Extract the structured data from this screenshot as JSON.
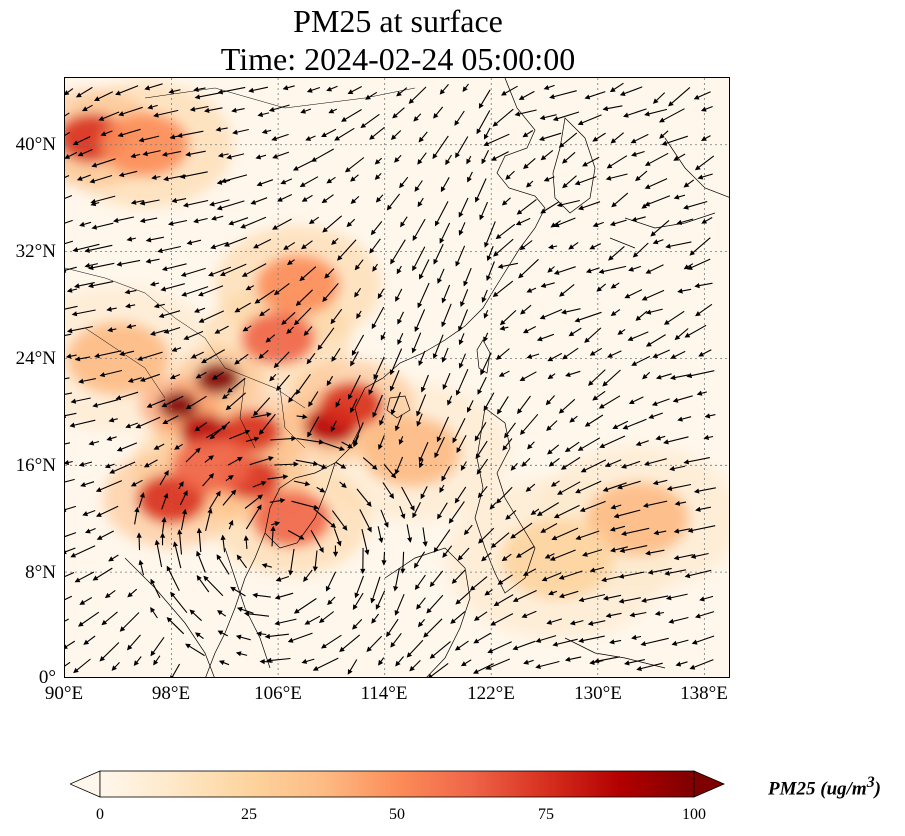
{
  "title": {
    "line1": "PM25 at surface",
    "line2": "Time: 2024-02-24 05:00:00"
  },
  "map": {
    "variable": "PM25",
    "lon_range": [
      90,
      140
    ],
    "lat_range": [
      0,
      45
    ],
    "lat_ticks": [
      "40°N",
      "32°N",
      "24°N",
      "16°N",
      "8°N",
      "0°"
    ],
    "lon_ticks": [
      "90°E",
      "98°E",
      "106°E",
      "114°E",
      "122°E",
      "130°E",
      "138°E"
    ],
    "gridlines": true,
    "background_color": "#fff7ec",
    "coastline_color": "#000000",
    "vector_color": "#000000",
    "hotspots": [
      {
        "lon": 98.5,
        "lat": 20.5,
        "value": 100
      },
      {
        "lon": 101.5,
        "lat": 22.5,
        "value": 95
      },
      {
        "lon": 100.5,
        "lat": 18.5,
        "value": 90
      },
      {
        "lon": 104.0,
        "lat": 18.5,
        "value": 80
      },
      {
        "lon": 110.0,
        "lat": 19.0,
        "value": 85
      },
      {
        "lon": 111.5,
        "lat": 20.5,
        "value": 75
      },
      {
        "lon": 106.0,
        "lat": 25.5,
        "value": 65
      },
      {
        "lon": 107.5,
        "lat": 29.5,
        "value": 55
      },
      {
        "lon": 92.0,
        "lat": 40.5,
        "value": 70
      },
      {
        "lon": 96.0,
        "lat": 40.0,
        "value": 50
      },
      {
        "lon": 104.0,
        "lat": 15.0,
        "value": 80
      },
      {
        "lon": 107.0,
        "lat": 12.0,
        "value": 60
      },
      {
        "lon": 98.0,
        "lat": 13.5,
        "value": 70
      },
      {
        "lon": 101.0,
        "lat": 16.0,
        "value": 60
      },
      {
        "lon": 133.0,
        "lat": 12.0,
        "value": 35
      },
      {
        "lon": 127.0,
        "lat": 9.0,
        "value": 25
      },
      {
        "lon": 116.0,
        "lat": 17.0,
        "value": 40
      },
      {
        "lon": 94.0,
        "lat": 24.0,
        "value": 35
      }
    ]
  },
  "colorbar": {
    "label": "PM25 (ug/m",
    "label_sup": "3",
    "label_close": ")",
    "min": 0,
    "max": 100,
    "ticks": [
      "0",
      "25",
      "50",
      "75",
      "100"
    ],
    "colormap": [
      "#fff7ec",
      "#fee8c8",
      "#fdd49e",
      "#fdbb84",
      "#fc8d59",
      "#ef6548",
      "#d7301f",
      "#b30000",
      "#7f0000"
    ]
  }
}
